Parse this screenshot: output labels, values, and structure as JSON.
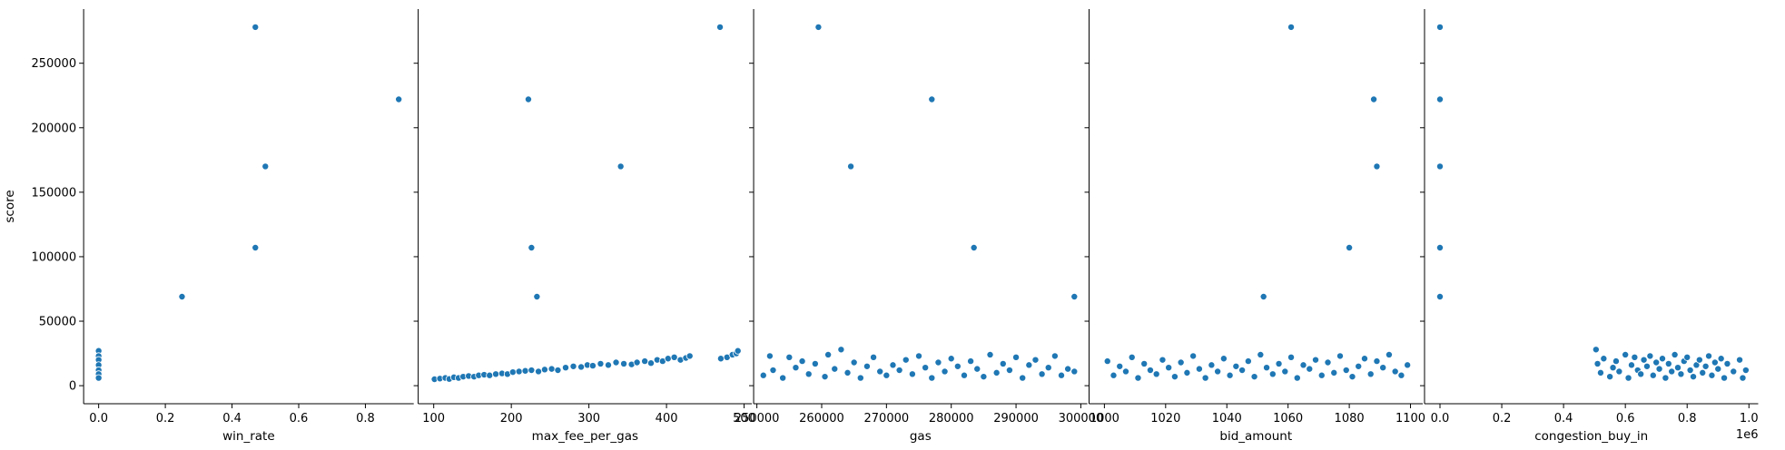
{
  "chart_data": [
    {
      "type": "scatter",
      "xlabel": "win_rate",
      "ylabel": "score",
      "xlim": [
        -0.045,
        0.945
      ],
      "ylim": [
        -14000,
        292000
      ],
      "xticks": [
        0.0,
        0.2,
        0.4,
        0.6,
        0.8
      ],
      "xtick_labels": [
        "0.0",
        "0.2",
        "0.4",
        "0.6",
        "0.8"
      ],
      "yticks": [
        0,
        50000,
        100000,
        150000,
        200000,
        250000
      ],
      "ytick_labels": [
        "0",
        "50000",
        "100000",
        "150000",
        "200000",
        "250000"
      ],
      "grid": false,
      "points": [
        [
          0.0,
          27000
        ],
        [
          0.0,
          23000
        ],
        [
          0.0,
          20000
        ],
        [
          0.0,
          16000
        ],
        [
          0.0,
          12000
        ],
        [
          0.0,
          9000
        ],
        [
          0.0,
          6000
        ],
        [
          0.25,
          69000
        ],
        [
          0.47,
          107000
        ],
        [
          0.47,
          278000
        ],
        [
          0.5,
          170000
        ],
        [
          0.9,
          222000
        ]
      ]
    },
    {
      "type": "scatter",
      "xlabel": "max_fee_per_gas",
      "ylabel": "",
      "xlim": [
        80,
        510
      ],
      "ylim": [
        -14000,
        292000
      ],
      "xticks": [
        100,
        200,
        300,
        400,
        500
      ],
      "xtick_labels": [
        "100",
        "200",
        "300",
        "400",
        "500"
      ],
      "yticks": [
        0,
        50000,
        100000,
        150000,
        200000,
        250000
      ],
      "ytick_labels": [],
      "grid": false,
      "points": [
        [
          101,
          5000
        ],
        [
          108,
          5500
        ],
        [
          115,
          6000
        ],
        [
          120,
          5200
        ],
        [
          126,
          6500
        ],
        [
          132,
          6000
        ],
        [
          138,
          7000
        ],
        [
          145,
          7500
        ],
        [
          152,
          7000
        ],
        [
          158,
          8000
        ],
        [
          165,
          8500
        ],
        [
          172,
          8000
        ],
        [
          180,
          9000
        ],
        [
          188,
          9500
        ],
        [
          195,
          9000
        ],
        [
          202,
          10500
        ],
        [
          210,
          11000
        ],
        [
          218,
          11500
        ],
        [
          226,
          12000
        ],
        [
          235,
          11000
        ],
        [
          243,
          12500
        ],
        [
          252,
          13000
        ],
        [
          260,
          12000
        ],
        [
          270,
          14000
        ],
        [
          280,
          15000
        ],
        [
          290,
          14500
        ],
        [
          298,
          16000
        ],
        [
          305,
          15500
        ],
        [
          315,
          17000
        ],
        [
          325,
          16000
        ],
        [
          335,
          18000
        ],
        [
          345,
          17000
        ],
        [
          355,
          16500
        ],
        [
          362,
          18000
        ],
        [
          372,
          19000
        ],
        [
          380,
          17500
        ],
        [
          388,
          20000
        ],
        [
          395,
          19000
        ],
        [
          402,
          21000
        ],
        [
          410,
          22000
        ],
        [
          418,
          20000
        ],
        [
          425,
          21500
        ],
        [
          430,
          23000
        ],
        [
          470,
          21000
        ],
        [
          478,
          22000
        ],
        [
          485,
          24000
        ],
        [
          490,
          25000
        ],
        [
          492,
          27000
        ],
        [
          222,
          222000
        ],
        [
          226,
          107000
        ],
        [
          233,
          69000
        ],
        [
          341,
          170000
        ],
        [
          469,
          278000
        ]
      ]
    },
    {
      "type": "scatter",
      "xlabel": "gas",
      "ylabel": "",
      "xlim": [
        249500,
        301000
      ],
      "ylim": [
        -14000,
        292000
      ],
      "xticks": [
        250000,
        260000,
        270000,
        280000,
        290000,
        300000
      ],
      "xtick_labels": [
        "250000",
        "260000",
        "270000",
        "280000",
        "290000",
        "300000"
      ],
      "yticks": [
        0,
        50000,
        100000,
        150000,
        200000,
        250000
      ],
      "ytick_labels": [],
      "grid": false,
      "points": [
        [
          251000,
          8000
        ],
        [
          252000,
          23000
        ],
        [
          252500,
          12000
        ],
        [
          254000,
          6000
        ],
        [
          255000,
          22000
        ],
        [
          256000,
          14000
        ],
        [
          257000,
          19000
        ],
        [
          258000,
          9000
        ],
        [
          259000,
          17000
        ],
        [
          260500,
          7000
        ],
        [
          261000,
          24000
        ],
        [
          262000,
          13000
        ],
        [
          263000,
          28000
        ],
        [
          264000,
          10000
        ],
        [
          265000,
          18000
        ],
        [
          266000,
          6000
        ],
        [
          267000,
          15000
        ],
        [
          268000,
          22000
        ],
        [
          269000,
          11000
        ],
        [
          270000,
          8000
        ],
        [
          271000,
          16000
        ],
        [
          272000,
          12000
        ],
        [
          273000,
          20000
        ],
        [
          274000,
          9000
        ],
        [
          275000,
          23000
        ],
        [
          276000,
          14000
        ],
        [
          277000,
          6000
        ],
        [
          278000,
          18000
        ],
        [
          279000,
          11000
        ],
        [
          280000,
          21000
        ],
        [
          281000,
          15000
        ],
        [
          282000,
          8000
        ],
        [
          283000,
          19000
        ],
        [
          284000,
          13000
        ],
        [
          285000,
          7000
        ],
        [
          286000,
          24000
        ],
        [
          287000,
          10000
        ],
        [
          288000,
          17000
        ],
        [
          289000,
          12000
        ],
        [
          290000,
          22000
        ],
        [
          291000,
          6000
        ],
        [
          292000,
          16000
        ],
        [
          293000,
          20000
        ],
        [
          294000,
          9000
        ],
        [
          295000,
          14000
        ],
        [
          296000,
          23000
        ],
        [
          297000,
          8000
        ],
        [
          298000,
          13000
        ],
        [
          299000,
          11000
        ],
        [
          259500,
          278000
        ],
        [
          264500,
          170000
        ],
        [
          277000,
          222000
        ],
        [
          283500,
          107000
        ],
        [
          299000,
          69000
        ]
      ]
    },
    {
      "type": "scatter",
      "xlabel": "bid_amount",
      "ylabel": "",
      "xlim": [
        995,
        1104
      ],
      "ylim": [
        -14000,
        292000
      ],
      "xticks": [
        1000,
        1020,
        1040,
        1060,
        1080,
        1100
      ],
      "xtick_labels": [
        "1000",
        "1020",
        "1040",
        "1060",
        "1080",
        "1100"
      ],
      "yticks": [
        0,
        50000,
        100000,
        150000,
        200000,
        250000
      ],
      "ytick_labels": [],
      "grid": false,
      "points": [
        [
          1001,
          19000
        ],
        [
          1003,
          8000
        ],
        [
          1005,
          15000
        ],
        [
          1007,
          11000
        ],
        [
          1009,
          22000
        ],
        [
          1011,
          6000
        ],
        [
          1013,
          17000
        ],
        [
          1015,
          12000
        ],
        [
          1017,
          9000
        ],
        [
          1019,
          20000
        ],
        [
          1021,
          14000
        ],
        [
          1023,
          7000
        ],
        [
          1025,
          18000
        ],
        [
          1027,
          10000
        ],
        [
          1029,
          23000
        ],
        [
          1031,
          13000
        ],
        [
          1033,
          6000
        ],
        [
          1035,
          16000
        ],
        [
          1037,
          11000
        ],
        [
          1039,
          21000
        ],
        [
          1041,
          8000
        ],
        [
          1043,
          15000
        ],
        [
          1045,
          12000
        ],
        [
          1047,
          19000
        ],
        [
          1049,
          7000
        ],
        [
          1051,
          24000
        ],
        [
          1053,
          14000
        ],
        [
          1055,
          9000
        ],
        [
          1057,
          17000
        ],
        [
          1059,
          11000
        ],
        [
          1061,
          22000
        ],
        [
          1063,
          6000
        ],
        [
          1065,
          16000
        ],
        [
          1067,
          13000
        ],
        [
          1069,
          20000
        ],
        [
          1071,
          8000
        ],
        [
          1073,
          18000
        ],
        [
          1075,
          10000
        ],
        [
          1077,
          23000
        ],
        [
          1079,
          12000
        ],
        [
          1081,
          7000
        ],
        [
          1083,
          15000
        ],
        [
          1085,
          21000
        ],
        [
          1087,
          9000
        ],
        [
          1089,
          19000
        ],
        [
          1091,
          14000
        ],
        [
          1093,
          24000
        ],
        [
          1095,
          11000
        ],
        [
          1097,
          8000
        ],
        [
          1099,
          16000
        ],
        [
          1052,
          69000
        ],
        [
          1061,
          278000
        ],
        [
          1080,
          107000
        ],
        [
          1088,
          222000
        ],
        [
          1089,
          170000
        ]
      ]
    },
    {
      "type": "scatter",
      "xlabel": "congestion_buy_in",
      "ylabel": "",
      "x_offset_label": "1e6",
      "xlim": [
        -0.05,
        1.03
      ],
      "ylim": [
        -14000,
        292000
      ],
      "xticks": [
        0.0,
        0.2,
        0.4,
        0.6,
        0.8,
        1.0
      ],
      "xtick_labels": [
        "0.0",
        "0.2",
        "0.4",
        "0.6",
        "0.8",
        "1.0"
      ],
      "yticks": [
        0,
        50000,
        100000,
        150000,
        200000,
        250000
      ],
      "ytick_labels": [],
      "grid": false,
      "points": [
        [
          0.0,
          69000
        ],
        [
          0.0,
          107000
        ],
        [
          0.0,
          170000
        ],
        [
          0.0,
          222000
        ],
        [
          0.0,
          278000
        ],
        [
          0.505,
          28000
        ],
        [
          0.51,
          17000
        ],
        [
          0.52,
          10000
        ],
        [
          0.53,
          21000
        ],
        [
          0.55,
          7000
        ],
        [
          0.56,
          14000
        ],
        [
          0.57,
          19000
        ],
        [
          0.58,
          11000
        ],
        [
          0.6,
          24000
        ],
        [
          0.61,
          6000
        ],
        [
          0.62,
          16000
        ],
        [
          0.63,
          22000
        ],
        [
          0.64,
          12000
        ],
        [
          0.65,
          9000
        ],
        [
          0.66,
          20000
        ],
        [
          0.67,
          15000
        ],
        [
          0.68,
          23000
        ],
        [
          0.69,
          8000
        ],
        [
          0.7,
          18000
        ],
        [
          0.71,
          13000
        ],
        [
          0.72,
          21000
        ],
        [
          0.73,
          6000
        ],
        [
          0.74,
          17000
        ],
        [
          0.75,
          11000
        ],
        [
          0.76,
          24000
        ],
        [
          0.77,
          14000
        ],
        [
          0.78,
          9000
        ],
        [
          0.79,
          19000
        ],
        [
          0.8,
          22000
        ],
        [
          0.81,
          12000
        ],
        [
          0.82,
          7000
        ],
        [
          0.83,
          16000
        ],
        [
          0.84,
          20000
        ],
        [
          0.85,
          10000
        ],
        [
          0.86,
          15000
        ],
        [
          0.87,
          23000
        ],
        [
          0.88,
          8000
        ],
        [
          0.89,
          18000
        ],
        [
          0.9,
          13000
        ],
        [
          0.91,
          21000
        ],
        [
          0.92,
          6000
        ],
        [
          0.93,
          17000
        ],
        [
          0.95,
          11000
        ],
        [
          0.97,
          20000
        ],
        [
          0.98,
          6000
        ],
        [
          0.99,
          12000
        ]
      ]
    }
  ]
}
